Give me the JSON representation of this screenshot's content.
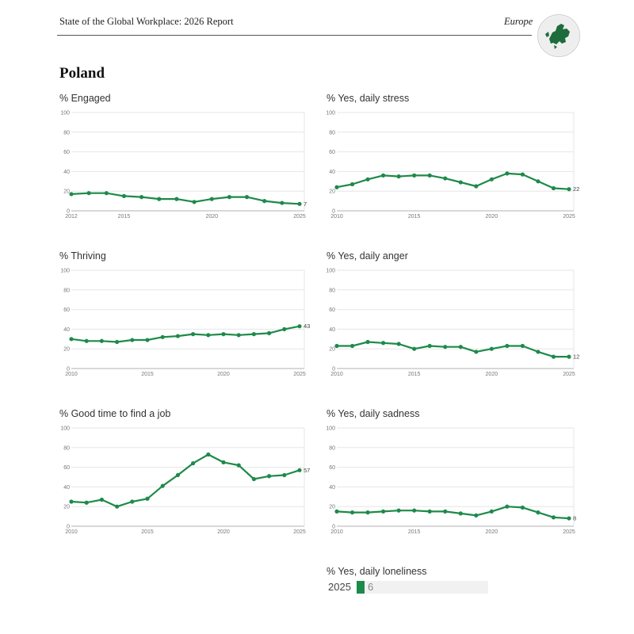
{
  "header": {
    "title": "State of the Global Workplace: 2026 Report",
    "region": "Europe"
  },
  "country": "Poland",
  "colors": {
    "line": "#1e8a4a",
    "grid": "#e6e6e6",
    "axis": "#b0b0b0"
  },
  "globe_icon": "europe-globe-icon",
  "chart_data": [
    {
      "id": "engaged",
      "type": "line",
      "title": "% Engaged",
      "x": [
        2012,
        2013,
        2014,
        2015,
        2016,
        2017,
        2018,
        2019,
        2020,
        2021,
        2022,
        2023,
        2024,
        2025
      ],
      "values": [
        17,
        18,
        18,
        15,
        14,
        12,
        12,
        9,
        12,
        14,
        14,
        10,
        8,
        7
      ],
      "xticks": [
        2012,
        2015,
        2020,
        2025
      ],
      "yticks": [
        0,
        20,
        40,
        60,
        80,
        100
      ],
      "xlim": [
        2012,
        2025
      ],
      "ylim": [
        0,
        100
      ],
      "end_label": "7"
    },
    {
      "id": "stress",
      "type": "line",
      "title": "% Yes, daily stress",
      "x": [
        2010,
        2011,
        2012,
        2013,
        2014,
        2015,
        2016,
        2017,
        2018,
        2019,
        2020,
        2021,
        2022,
        2023,
        2024,
        2025
      ],
      "values": [
        24,
        27,
        32,
        36,
        35,
        36,
        36,
        33,
        29,
        25,
        32,
        38,
        37,
        30,
        23,
        22
      ],
      "xticks": [
        2010,
        2015,
        2020,
        2025
      ],
      "yticks": [
        0,
        20,
        40,
        60,
        80,
        100
      ],
      "xlim": [
        2010,
        2025
      ],
      "ylim": [
        0,
        100
      ],
      "end_label": "22"
    },
    {
      "id": "thriving",
      "type": "line",
      "title": "% Thriving",
      "x": [
        2010,
        2011,
        2012,
        2013,
        2014,
        2015,
        2016,
        2017,
        2018,
        2019,
        2020,
        2021,
        2022,
        2023,
        2024,
        2025
      ],
      "values": [
        30,
        28,
        28,
        27,
        29,
        29,
        32,
        33,
        35,
        34,
        35,
        34,
        35,
        36,
        40,
        43
      ],
      "xticks": [
        2010,
        2015,
        2020,
        2025
      ],
      "yticks": [
        0,
        20,
        40,
        60,
        80,
        100
      ],
      "xlim": [
        2010,
        2025
      ],
      "ylim": [
        0,
        100
      ],
      "end_label": "43"
    },
    {
      "id": "anger",
      "type": "line",
      "title": "% Yes, daily anger",
      "x": [
        2010,
        2011,
        2012,
        2013,
        2014,
        2015,
        2016,
        2017,
        2018,
        2019,
        2020,
        2021,
        2022,
        2023,
        2024,
        2025
      ],
      "values": [
        23,
        23,
        27,
        26,
        25,
        20,
        23,
        22,
        22,
        17,
        20,
        23,
        23,
        17,
        12,
        12
      ],
      "xticks": [
        2010,
        2015,
        2020,
        2025
      ],
      "yticks": [
        0,
        20,
        40,
        60,
        80,
        100
      ],
      "xlim": [
        2010,
        2025
      ],
      "ylim": [
        0,
        100
      ],
      "end_label": "12"
    },
    {
      "id": "job",
      "type": "line",
      "title": "% Good time to find a job",
      "x": [
        2010,
        2011,
        2012,
        2013,
        2014,
        2015,
        2016,
        2017,
        2018,
        2019,
        2020,
        2021,
        2022,
        2023,
        2024,
        2025
      ],
      "values": [
        25,
        24,
        27,
        20,
        25,
        28,
        41,
        52,
        64,
        73,
        65,
        62,
        48,
        51,
        52,
        57
      ],
      "xticks": [
        2010,
        2015,
        2020,
        2025
      ],
      "yticks": [
        0,
        20,
        40,
        60,
        80,
        100
      ],
      "xlim": [
        2010,
        2025
      ],
      "ylim": [
        0,
        100
      ],
      "end_label": "57"
    },
    {
      "id": "sadness",
      "type": "line",
      "title": "% Yes, daily sadness",
      "x": [
        2010,
        2011,
        2012,
        2013,
        2014,
        2015,
        2016,
        2017,
        2018,
        2019,
        2020,
        2021,
        2022,
        2023,
        2024,
        2025
      ],
      "values": [
        15,
        14,
        14,
        15,
        16,
        16,
        15,
        15,
        13,
        11,
        15,
        20,
        19,
        14,
        9,
        8
      ],
      "xticks": [
        2010,
        2015,
        2020,
        2025
      ],
      "yticks": [
        0,
        20,
        40,
        60,
        80,
        100
      ],
      "xlim": [
        2010,
        2025
      ],
      "ylim": [
        0,
        100
      ],
      "end_label": "8"
    },
    {
      "id": "loneliness",
      "type": "bar",
      "title": "% Yes, daily loneliness",
      "categories": [
        "2025"
      ],
      "values": [
        6
      ],
      "xlim": [
        0,
        100
      ]
    }
  ]
}
